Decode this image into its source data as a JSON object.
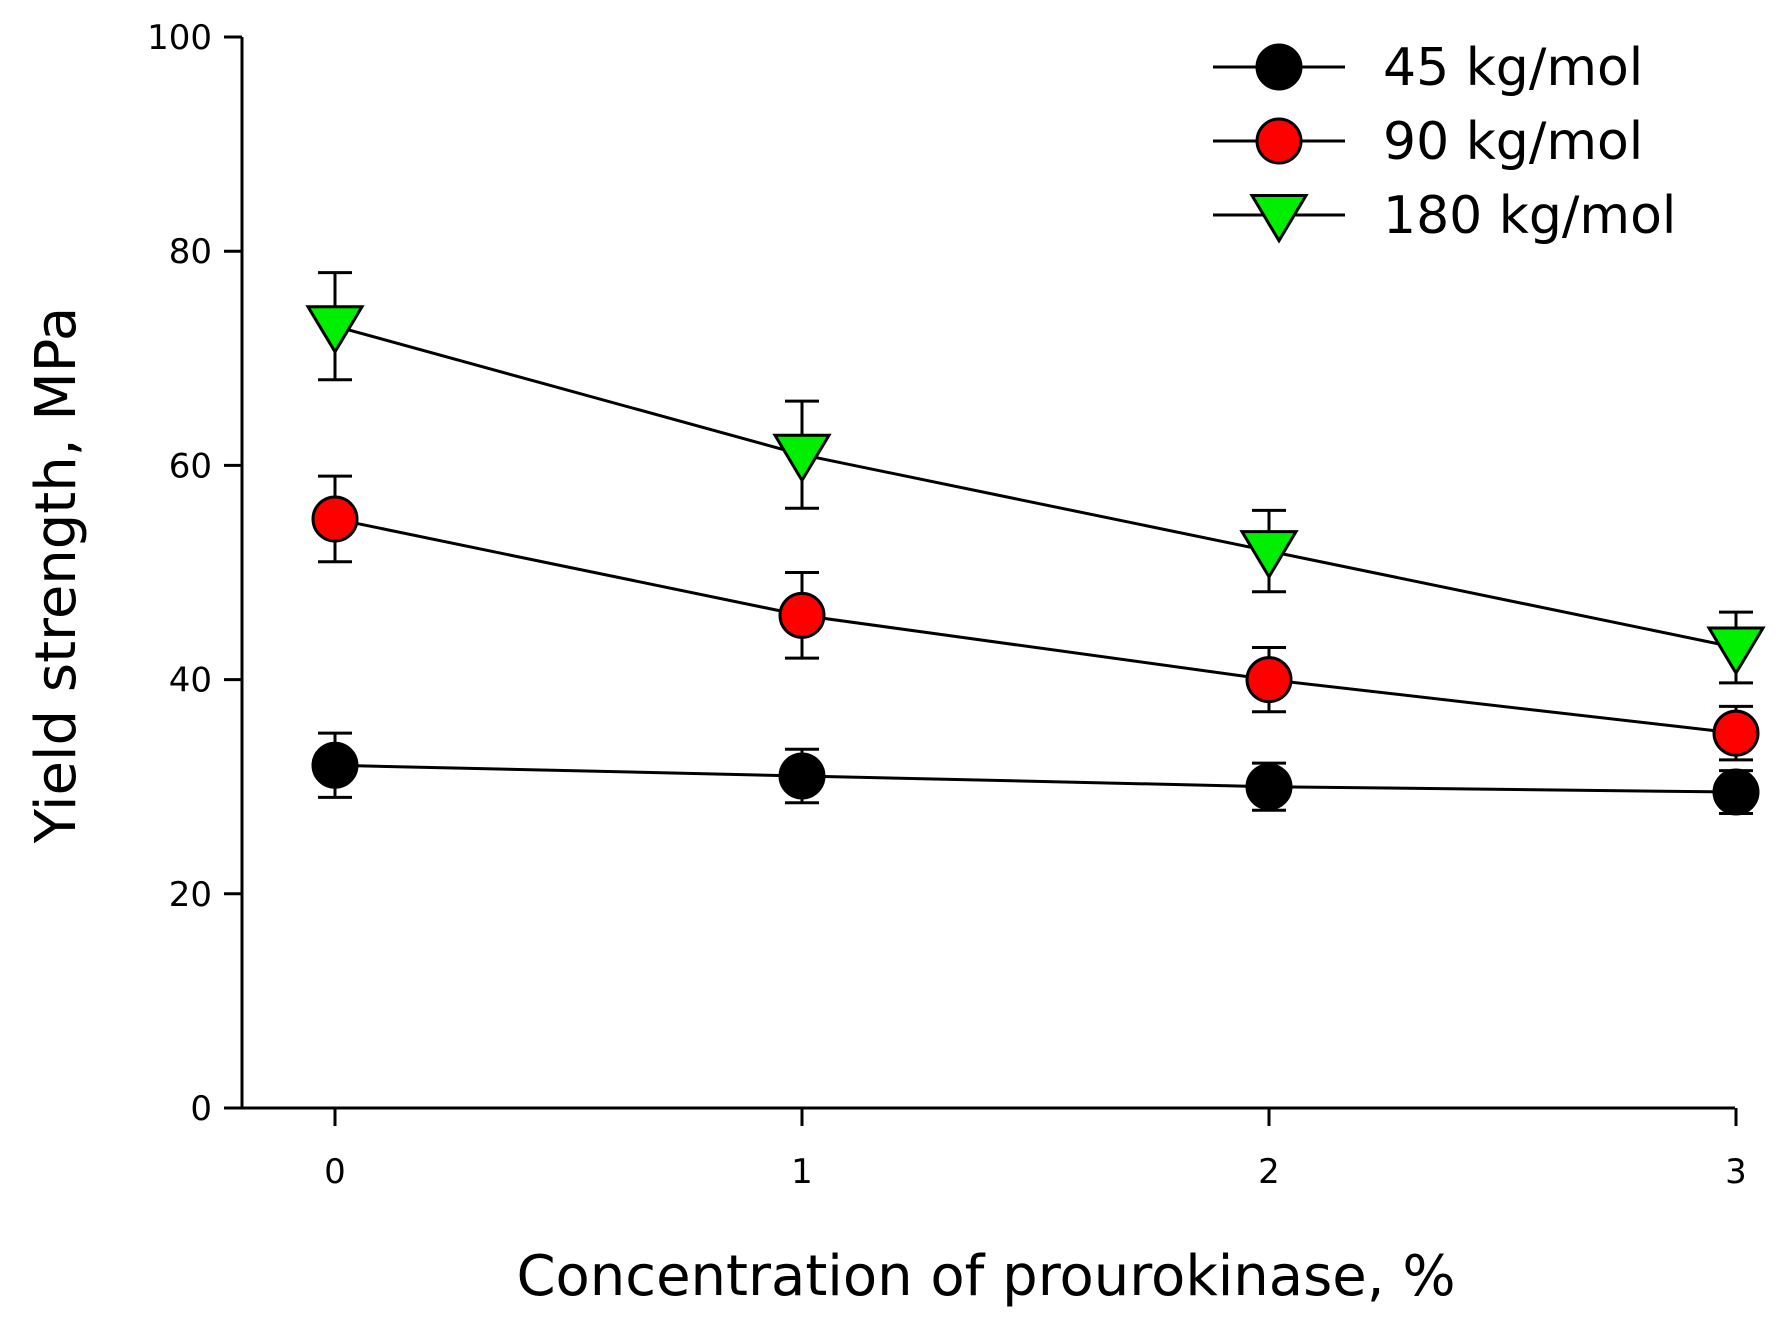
{
  "chart_data": {
    "type": "line",
    "title": "",
    "xlabel": "Concentration of prourokinase, %",
    "ylabel": "Yield strength, MPa",
    "xlim": [
      -0.2,
      3.0
    ],
    "ylim": [
      0,
      100
    ],
    "x": [
      0,
      1,
      2,
      3
    ],
    "x_ticks": [
      0,
      1,
      2,
      3
    ],
    "y_ticks": [
      0,
      20,
      40,
      60,
      80,
      100
    ],
    "x_tick_labels": [
      "0",
      "1",
      "2",
      "3"
    ],
    "y_tick_labels": [
      "0",
      "20",
      "40",
      "60",
      "80",
      "100"
    ],
    "grid": false,
    "legend_position": "top-right",
    "series": [
      {
        "name": "45 kg/mol",
        "marker": "circle",
        "color": "#000000",
        "values": [
          32,
          31,
          30,
          29.5
        ],
        "errors": [
          3,
          2.5,
          2.2,
          2
        ]
      },
      {
        "name": "90 kg/mol",
        "marker": "circle",
        "color": "#ff0000",
        "values": [
          55,
          46,
          40,
          35
        ],
        "errors": [
          4,
          4,
          3,
          2.5
        ]
      },
      {
        "name": "180 kg/mol",
        "marker": "triangle-down",
        "color": "#00ee00",
        "values": [
          73,
          61,
          52,
          43
        ],
        "errors": [
          5,
          5,
          3.8,
          3.3
        ]
      }
    ]
  }
}
